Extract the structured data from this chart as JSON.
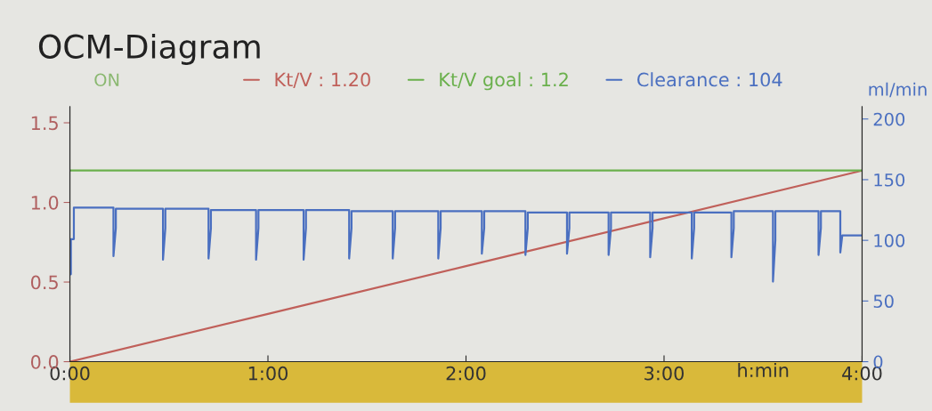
{
  "chart_data": {
    "type": "line",
    "title": "OCM-Diagram",
    "xlabel": "h:min",
    "y2label": "ml/min",
    "annotations": [
      "ON"
    ],
    "xlim": [
      0,
      4
    ],
    "xticks": [
      {
        "value": 0,
        "label": "0:00"
      },
      {
        "value": 1,
        "label": "1:00"
      },
      {
        "value": 2,
        "label": "2:00"
      },
      {
        "value": 3,
        "label": "3:00"
      },
      {
        "value": 4,
        "label": "4:00"
      }
    ],
    "ylim": [
      0,
      1.6
    ],
    "yticks": [
      {
        "value": 0,
        "label": "0.0"
      },
      0.5,
      {
        "value": 1,
        "label": "1.0"
      },
      1.5
    ],
    "y2lim": [
      0,
      210
    ],
    "y2ticks": [
      0,
      50,
      100,
      150,
      200
    ],
    "grid": false,
    "legend": "top",
    "series": [
      {
        "name": "Kt/V : 1.20",
        "color": "#c0605a",
        "x": [
          0,
          1,
          2,
          3,
          4
        ],
        "values": [
          0,
          0.3,
          0.6,
          0.9,
          1.2
        ]
      },
      {
        "name": "Kt/V goal : 1.2",
        "color": "#6ab04c",
        "x": [
          0,
          4
        ],
        "values": [
          1.2,
          1.2
        ]
      },
      {
        "name": "Clearance : 104",
        "axis": "y2",
        "color": "#4a6fc0",
        "x": [
          0,
          0.005,
          0.005,
          0.02,
          0.02,
          0.22,
          0.22,
          0.232,
          0.232,
          0.47,
          0.47,
          0.482,
          0.482,
          0.7,
          0.7,
          0.712,
          0.712,
          0.94,
          0.94,
          0.952,
          0.952,
          1.18,
          1.18,
          1.192,
          1.192,
          1.41,
          1.41,
          1.422,
          1.422,
          1.63,
          1.63,
          1.642,
          1.642,
          1.86,
          1.86,
          1.872,
          1.872,
          2.08,
          2.08,
          2.092,
          2.092,
          2.3,
          2.3,
          2.312,
          2.312,
          2.51,
          2.51,
          2.522,
          2.522,
          2.72,
          2.72,
          2.732,
          2.732,
          2.93,
          2.93,
          2.942,
          2.942,
          3.14,
          3.14,
          3.152,
          3.152,
          3.34,
          3.34,
          3.352,
          3.352,
          3.55,
          3.55,
          3.562,
          3.562,
          3.78,
          3.78,
          3.792,
          3.792,
          3.89,
          3.89,
          3.9,
          4.0
        ],
        "values": [
          72,
          72,
          101,
          101,
          127,
          127,
          87,
          110,
          126,
          126,
          84,
          110,
          126,
          126,
          85,
          110,
          125,
          125,
          84,
          110,
          125,
          125,
          84,
          110,
          125,
          125,
          85,
          110,
          124,
          124,
          85,
          110,
          124,
          124,
          85,
          110,
          124,
          124,
          89,
          110,
          124,
          124,
          88,
          110,
          123,
          123,
          89,
          110,
          123,
          123,
          88,
          110,
          123,
          123,
          86,
          110,
          123,
          123,
          85,
          110,
          123,
          123,
          86,
          110,
          124,
          124,
          66,
          100,
          124,
          124,
          88,
          110,
          124,
          124,
          90,
          104,
          104
        ]
      }
    ]
  }
}
